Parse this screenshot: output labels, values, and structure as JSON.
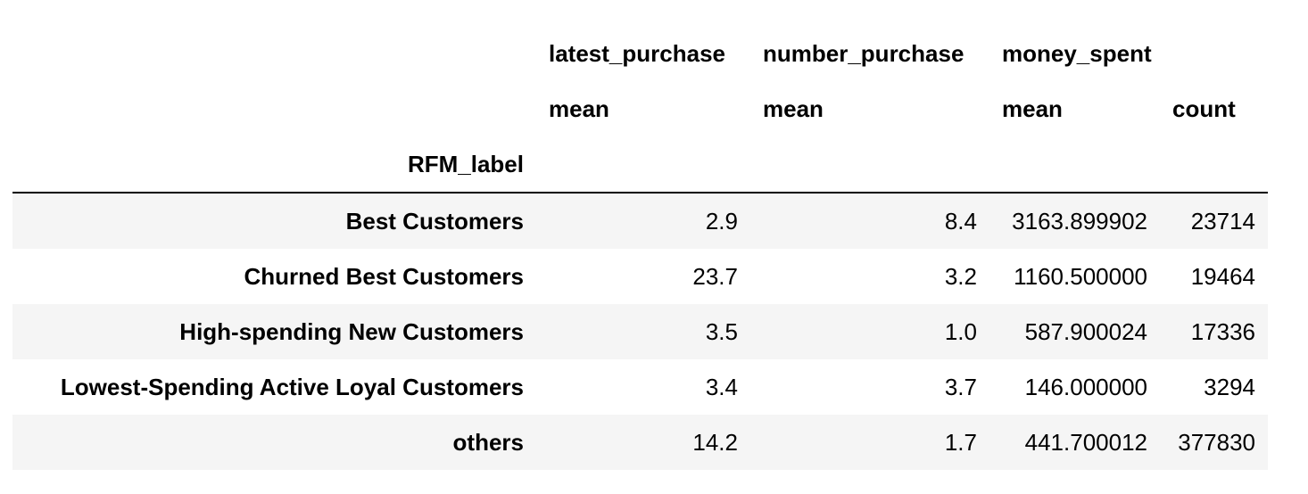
{
  "table": {
    "header_level_0": [
      "latest_purchase",
      "number_purchase",
      "money_spent",
      ""
    ],
    "header_level_1": [
      "mean",
      "mean",
      "mean",
      "count"
    ],
    "index_name": "RFM_label",
    "rows": [
      {
        "label": "Best Customers",
        "latest_purchase_mean": "2.9",
        "number_purchase_mean": "8.4",
        "money_spent_mean": "3163.899902",
        "money_spent_count": "23714"
      },
      {
        "label": "Churned Best Customers",
        "latest_purchase_mean": "23.7",
        "number_purchase_mean": "3.2",
        "money_spent_mean": "1160.500000",
        "money_spent_count": "19464"
      },
      {
        "label": "High-spending New Customers",
        "latest_purchase_mean": "3.5",
        "number_purchase_mean": "1.0",
        "money_spent_mean": "587.900024",
        "money_spent_count": "17336"
      },
      {
        "label": "Lowest-Spending Active Loyal Customers",
        "latest_purchase_mean": "3.4",
        "number_purchase_mean": "3.7",
        "money_spent_mean": "146.000000",
        "money_spent_count": "3294"
      },
      {
        "label": "others",
        "latest_purchase_mean": "14.2",
        "number_purchase_mean": "1.7",
        "money_spent_mean": "441.700012",
        "money_spent_count": "377830"
      }
    ]
  }
}
